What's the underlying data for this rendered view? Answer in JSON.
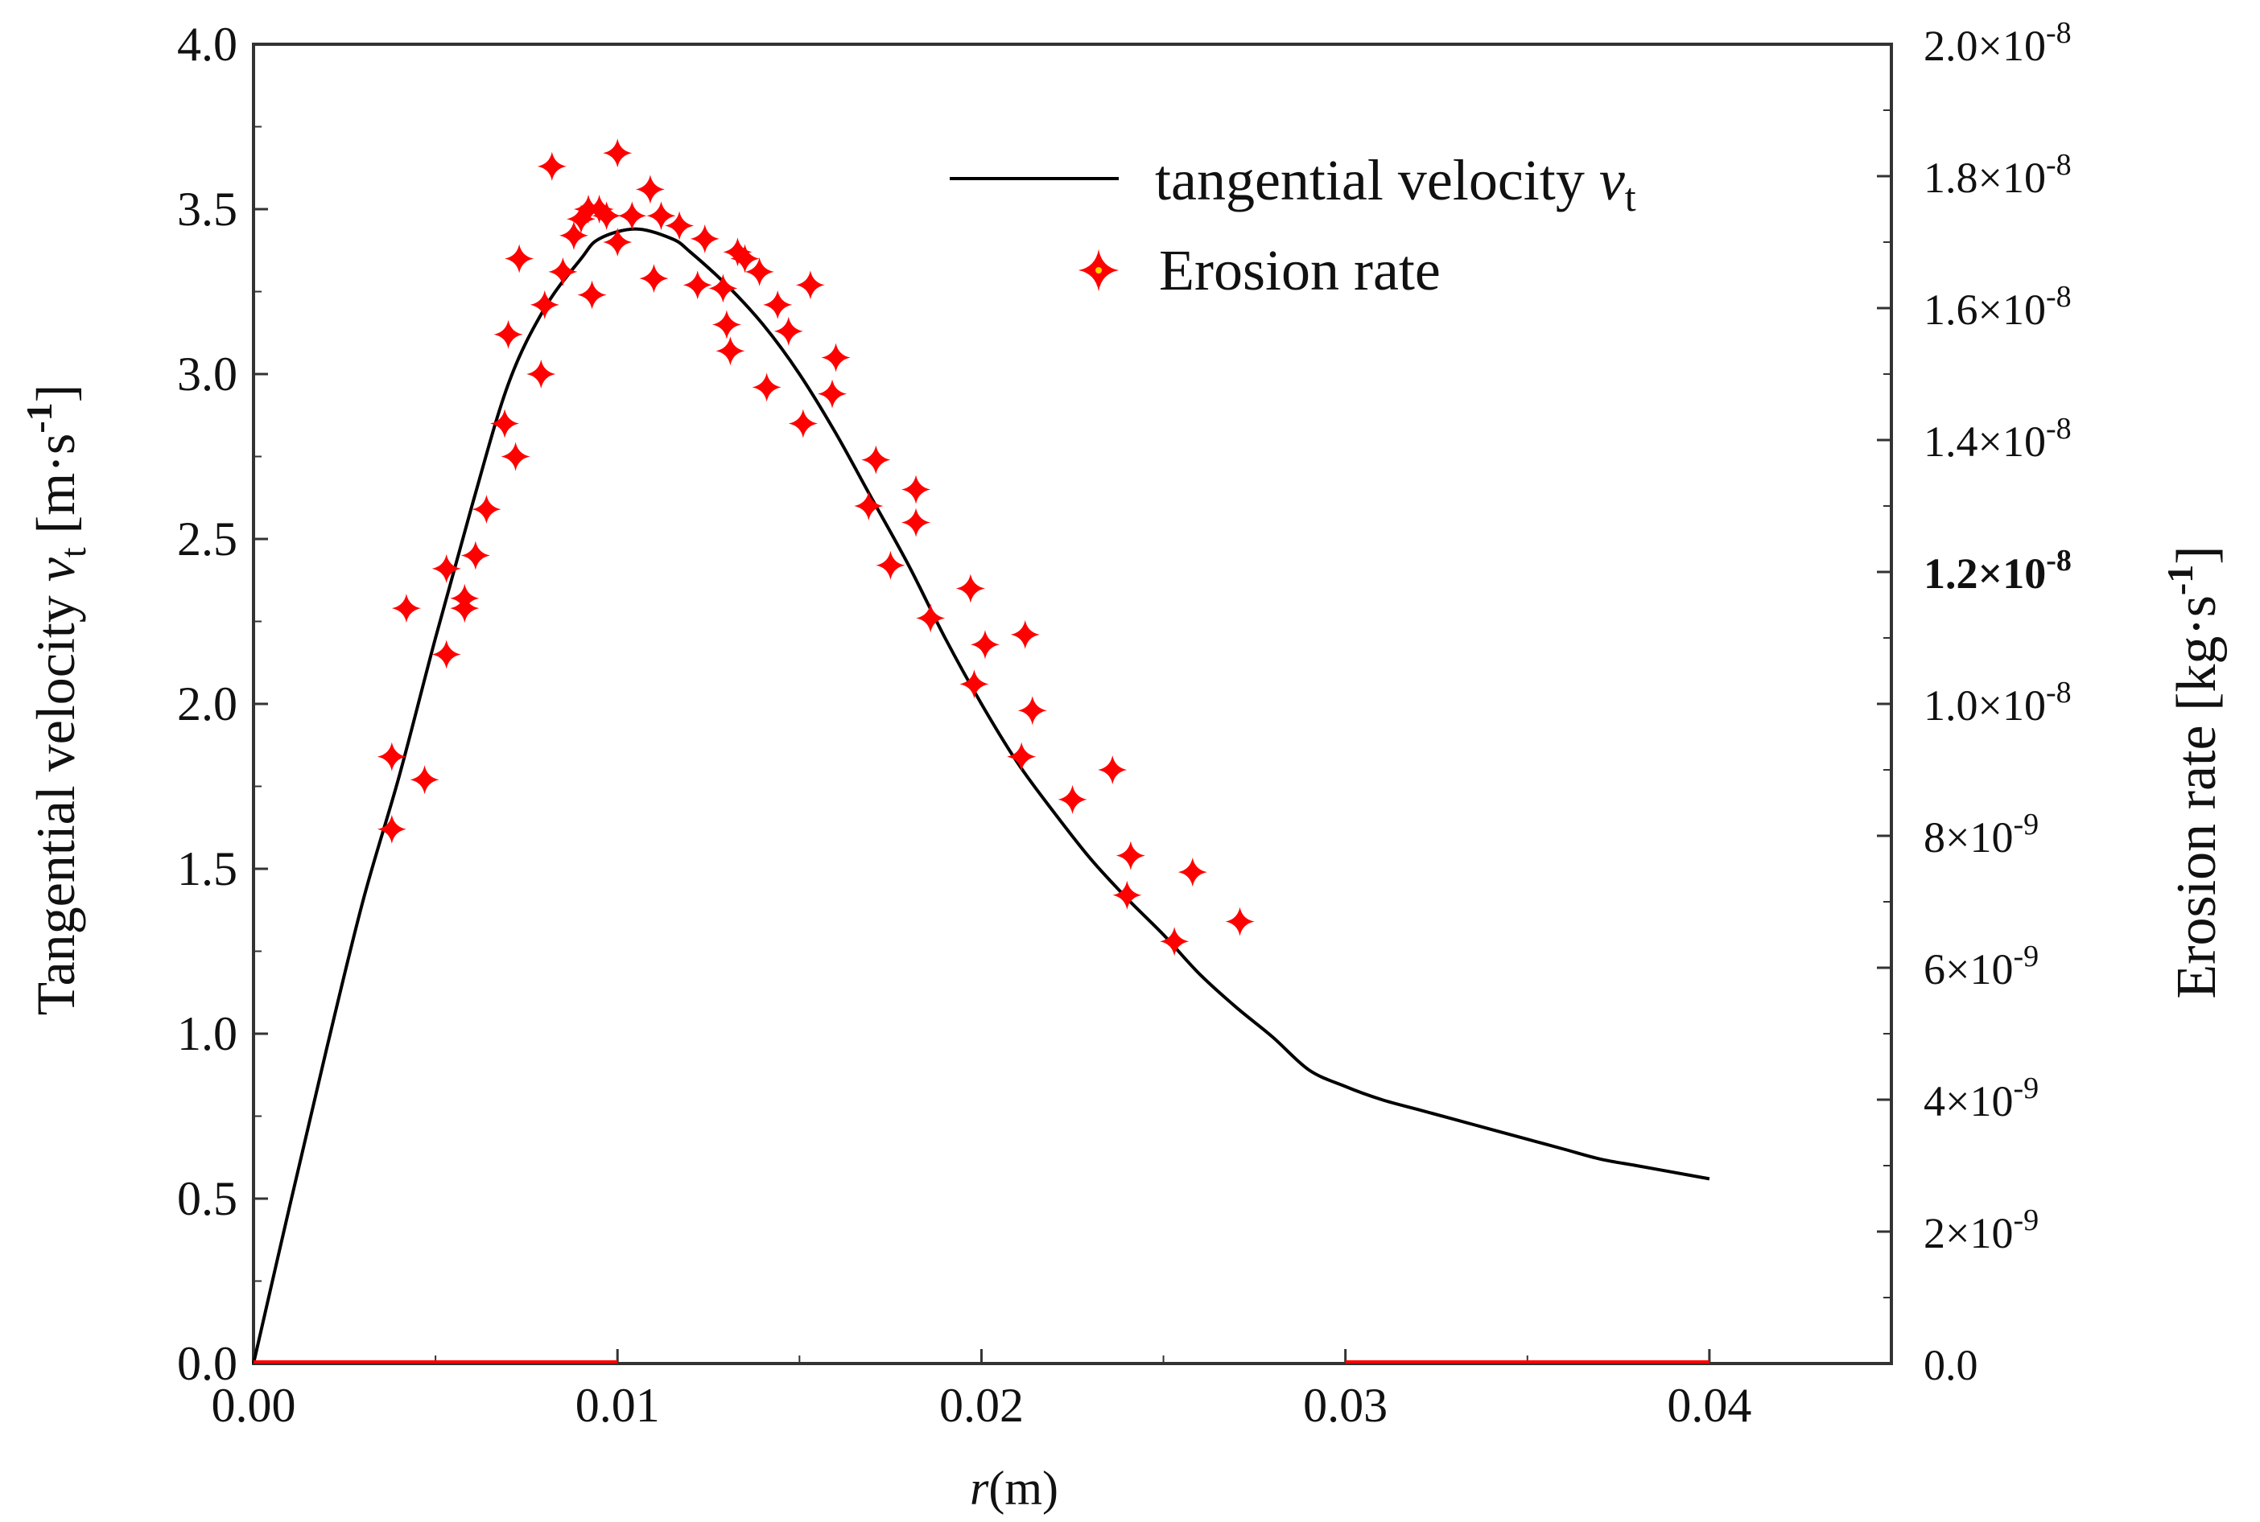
{
  "chart_data": {
    "type": "line+scatter",
    "xlabel": {
      "var": "r",
      "unit": "(m)"
    },
    "ylabel_left": {
      "prefix": "Tangential velocity ",
      "var": "v",
      "sub": "t",
      "unit_open": " [m·s",
      "exp": "-1",
      "unit_close": "]"
    },
    "ylabel_right": {
      "prefix": "Erosion rate [kg·s",
      "exp": "-1",
      "close": "]"
    },
    "xlim": [
      0,
      0.045
    ],
    "ylim_left": [
      0,
      4.0
    ],
    "ylim_right": [
      0,
      2e-08
    ],
    "x_ticks": [
      "0.00",
      "0.01",
      "0.02",
      "0.03",
      "0.04"
    ],
    "x_tick_values": [
      0,
      0.01,
      0.02,
      0.03,
      0.04
    ],
    "y_left_ticks": [
      "0.0",
      "0.5",
      "1.0",
      "1.5",
      "2.0",
      "2.5",
      "3.0",
      "3.5",
      "4.0"
    ],
    "y_left_tick_values": [
      0,
      0.5,
      1.0,
      1.5,
      2.0,
      2.5,
      3.0,
      3.5,
      4.0
    ],
    "y_right_ticks": [
      {
        "value": 0,
        "plain": "0.0"
      },
      {
        "value": 2e-09,
        "mant": "2×10",
        "exp": "-9"
      },
      {
        "value": 4e-09,
        "mant": "4×10",
        "exp": "-9"
      },
      {
        "value": 6e-09,
        "mant": "6×10",
        "exp": "-9"
      },
      {
        "value": 8e-09,
        "mant": "8×10",
        "exp": "-9"
      },
      {
        "value": 1e-08,
        "mant": "1.0×10",
        "exp": "-8"
      },
      {
        "value": 1.2e-08,
        "mant": "1.2×10",
        "exp": "-8",
        "bold": true
      },
      {
        "value": 1.4e-08,
        "mant": "1.4×10",
        "exp": "-8"
      },
      {
        "value": 1.6e-08,
        "mant": "1.6×10",
        "exp": "-8"
      },
      {
        "value": 1.8e-08,
        "mant": "1.8×10",
        "exp": "-8"
      },
      {
        "value": 2e-08,
        "mant": "2.0×10",
        "exp": "-8"
      }
    ],
    "legend": {
      "position": "top-right",
      "line_label": {
        "text": "tangential velocity ",
        "var": "v",
        "sub": "t"
      },
      "marker_label": "Erosion rate"
    },
    "series": [
      {
        "name": "tangential velocity vt",
        "kind": "line",
        "color": "#000000",
        "x": [
          0,
          0.001,
          0.002,
          0.003,
          0.004,
          0.005,
          0.006,
          0.007,
          0.008,
          0.009,
          0.0095,
          0.0105,
          0.0115,
          0.012,
          0.013,
          0.014,
          0.015,
          0.016,
          0.017,
          0.018,
          0.019,
          0.02,
          0.021,
          0.022,
          0.023,
          0.024,
          0.025,
          0.026,
          0.027,
          0.028,
          0.029,
          0.03,
          0.031,
          0.032,
          0.033,
          0.034,
          0.035,
          0.036,
          0.037,
          0.038,
          0.039,
          0.04
        ],
        "y": [
          0,
          0.48,
          0.95,
          1.4,
          1.78,
          2.2,
          2.6,
          2.97,
          3.2,
          3.35,
          3.41,
          3.44,
          3.41,
          3.37,
          3.27,
          3.15,
          3.0,
          2.82,
          2.62,
          2.42,
          2.2,
          2.0,
          1.82,
          1.67,
          1.53,
          1.41,
          1.3,
          1.18,
          1.08,
          0.99,
          0.89,
          0.84,
          0.8,
          0.77,
          0.74,
          0.71,
          0.68,
          0.65,
          0.62,
          0.6,
          0.58,
          0.56
        ]
      },
      {
        "name": "Erosion rate",
        "kind": "scatter",
        "marker": "four-point-star",
        "color": "#ff0000",
        "x": [
          0.0038,
          0.0038,
          0.0042,
          0.0047,
          0.0053,
          0.0053,
          0.0058,
          0.0058,
          0.0061,
          0.0064,
          0.0069,
          0.007,
          0.0072,
          0.0073,
          0.0079,
          0.008,
          0.0082,
          0.0085,
          0.0088,
          0.009,
          0.0092,
          0.0093,
          0.0095,
          0.0097,
          0.01,
          0.01,
          0.0104,
          0.0109,
          0.011,
          0.0112,
          0.0117,
          0.0122,
          0.0124,
          0.0129,
          0.013,
          0.0131,
          0.0133,
          0.0135,
          0.0139,
          0.0141,
          0.0144,
          0.0147,
          0.0151,
          0.0153,
          0.0159,
          0.016,
          0.0169,
          0.0171,
          0.0175,
          0.0182,
          0.0182,
          0.0186,
          0.0197,
          0.0198,
          0.0201,
          0.0211,
          0.0212,
          0.0214,
          0.0225,
          0.0236,
          0.024,
          0.0241,
          0.0253,
          0.0258,
          0.0271
        ],
        "y": [
          1.62,
          1.84,
          2.29,
          1.77,
          2.15,
          2.41,
          2.29,
          2.32,
          2.45,
          2.59,
          2.85,
          3.12,
          2.75,
          3.35,
          3.0,
          3.21,
          3.63,
          3.31,
          3.42,
          3.47,
          3.5,
          3.24,
          3.5,
          3.48,
          3.67,
          3.4,
          3.48,
          3.56,
          3.29,
          3.48,
          3.45,
          3.27,
          3.41,
          3.26,
          3.15,
          3.07,
          3.37,
          3.35,
          3.31,
          2.96,
          3.21,
          3.13,
          2.85,
          3.27,
          2.94,
          3.05,
          2.6,
          2.74,
          2.42,
          2.65,
          2.55,
          2.26,
          2.35,
          2.06,
          2.18,
          1.84,
          2.21,
          1.98,
          1.71,
          1.8,
          1.42,
          1.54,
          1.28,
          1.49,
          1.34
        ]
      },
      {
        "name": "baseline segments",
        "kind": "segments",
        "color": "#ff0000",
        "x_ranges": [
          [
            0,
            0.01
          ],
          [
            0.03,
            0.04
          ]
        ],
        "y": 0
      }
    ]
  }
}
